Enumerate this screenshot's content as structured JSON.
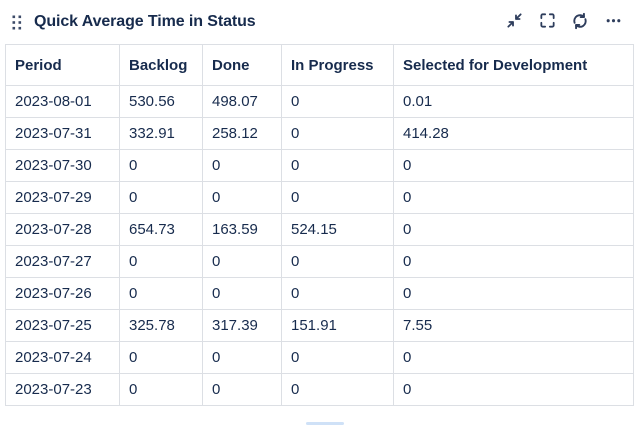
{
  "widget": {
    "title": "Quick Average Time in Status",
    "toolbar": {
      "collapse_icon": "collapse-diagonal-arrows",
      "fullscreen_icon": "corner-brackets",
      "refresh_icon": "circular-arrows",
      "more_icon": "ellipsis"
    },
    "drag_handle_icon": "six-dot-grid"
  },
  "table": {
    "columns": [
      "Period",
      "Backlog",
      "Done",
      "In Progress",
      "Selected for Development"
    ],
    "rows": [
      [
        "2023-08-01",
        "530.56",
        "498.07",
        "0",
        "0.01"
      ],
      [
        "2023-07-31",
        "332.91",
        "258.12",
        "0",
        "414.28"
      ],
      [
        "2023-07-30",
        "0",
        "0",
        "0",
        "0"
      ],
      [
        "2023-07-29",
        "0",
        "0",
        "0",
        "0"
      ],
      [
        "2023-07-28",
        "654.73",
        "163.59",
        "524.15",
        "0"
      ],
      [
        "2023-07-27",
        "0",
        "0",
        "0",
        "0"
      ],
      [
        "2023-07-26",
        "0",
        "0",
        "0",
        "0"
      ],
      [
        "2023-07-25",
        "325.78",
        "317.39",
        "151.91",
        "7.55"
      ],
      [
        "2023-07-24",
        "0",
        "0",
        "0",
        "0"
      ],
      [
        "2023-07-23",
        "0",
        "0",
        "0",
        "0"
      ]
    ]
  },
  "colors": {
    "text": "#172B4D",
    "border": "#DCDFE4",
    "icon": "#2E3D5C",
    "scrollbar_thumb": "#CFE1F7",
    "background": "#FFFFFF"
  }
}
